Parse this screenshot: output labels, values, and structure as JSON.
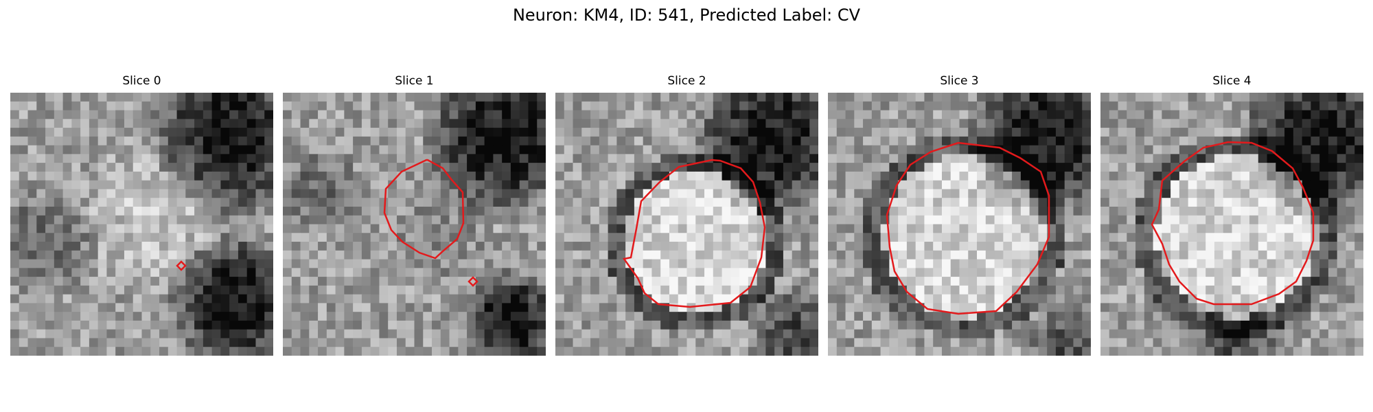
{
  "figure": {
    "title": "Neuron: KM4, ID: 541, Predicted Label: CV"
  },
  "panels": [
    {
      "title": "Slice 0",
      "contour": "small-marker"
    },
    {
      "title": "Slice 1",
      "contour": "medium-ring"
    },
    {
      "title": "Slice 2",
      "contour": "large-ring"
    },
    {
      "title": "Slice 3",
      "contour": "large-ring"
    },
    {
      "title": "Slice 4",
      "contour": "large-ring"
    }
  ],
  "colors": {
    "contour": "#e31a1c",
    "background": "#ffffff"
  }
}
